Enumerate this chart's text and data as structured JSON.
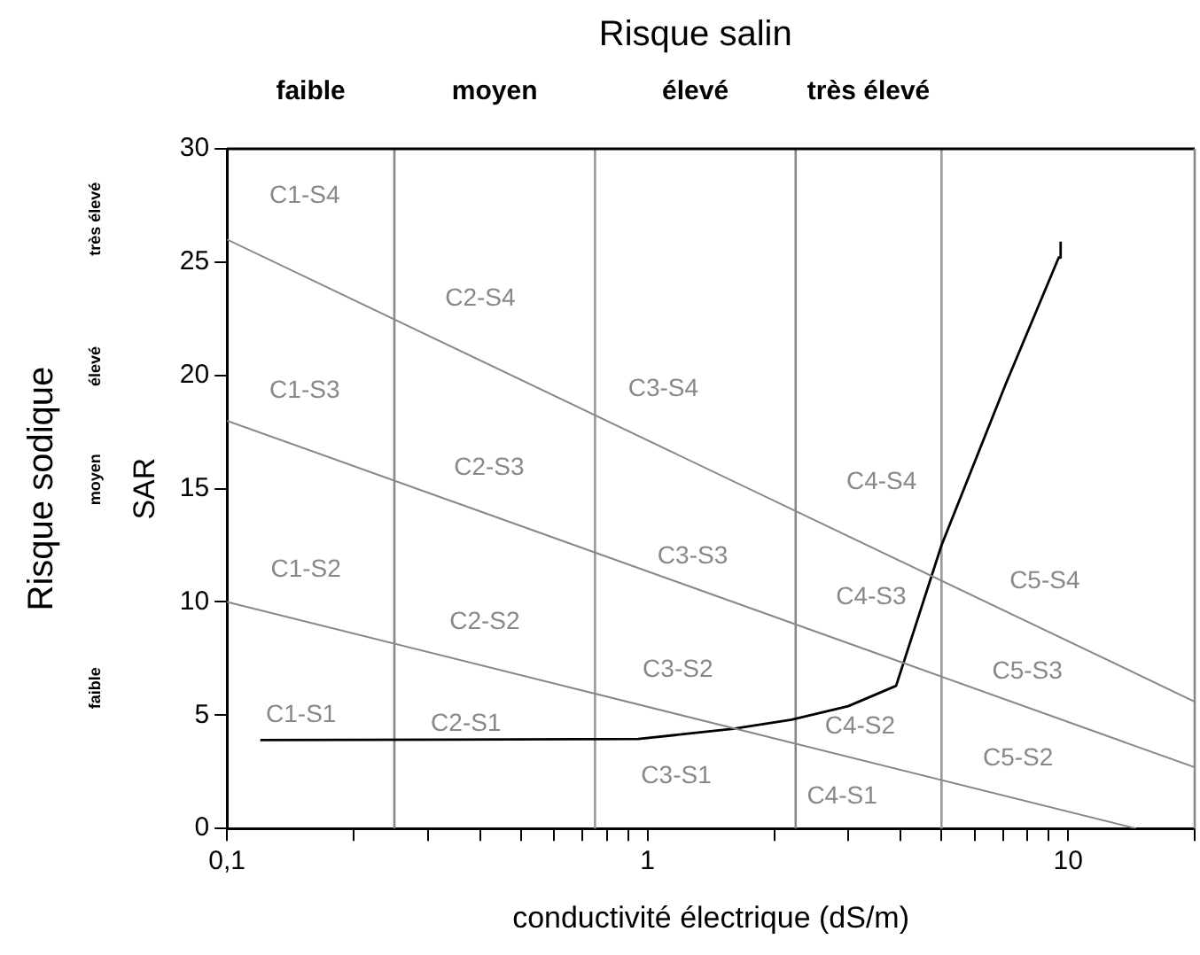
{
  "chart_data": {
    "type": "line",
    "title": "Risque salin",
    "xlabel": "conductivité électrique (dS/m)",
    "ylabel": "SAR",
    "log": "x",
    "xlim": [
      0.1,
      20
    ],
    "ylim": [
      0,
      30
    ],
    "xticks": [
      {
        "value": 0.1,
        "label": "0,1"
      },
      {
        "value": 0.2,
        "label": null
      },
      {
        "value": 0.3,
        "label": null
      },
      {
        "value": 0.4,
        "label": null
      },
      {
        "value": 0.5,
        "label": null
      },
      {
        "value": 0.6,
        "label": null
      },
      {
        "value": 0.7,
        "label": null
      },
      {
        "value": 0.8,
        "label": null
      },
      {
        "value": 0.9,
        "label": null
      },
      1,
      {
        "value": 2,
        "label": null
      },
      {
        "value": 3,
        "label": null
      },
      {
        "value": 4,
        "label": null
      },
      {
        "value": 5,
        "label": null
      },
      {
        "value": 6,
        "label": null
      },
      {
        "value": 7,
        "label": null
      },
      {
        "value": 8,
        "label": null
      },
      {
        "value": 9,
        "label": null
      },
      10,
      {
        "value": 20,
        "label": null
      }
    ],
    "yticks": [
      0,
      5,
      10,
      15,
      20,
      25,
      30
    ],
    "grid": false,
    "legend": false,
    "marker": "none",
    "line_style": "solid",
    "series": [
      {
        "color": "#888888",
        "x": [
          0.1,
          20
        ],
        "values": [
          26,
          5.6
        ]
      },
      {
        "color": "#888888",
        "x": [
          0.1,
          20
        ],
        "values": [
          18,
          2.7
        ]
      },
      {
        "color": "#888888",
        "x": [
          0.1,
          14.5
        ],
        "values": [
          10,
          0
        ]
      },
      {
        "color": "#000000",
        "x": [
          0.12,
          0.95,
          1.6,
          2.2,
          3,
          3.9,
          5,
          7.1,
          8.3,
          9.5,
          9.6,
          9.6
        ],
        "values": [
          3.9,
          3.95,
          4.4,
          4.8,
          5.4,
          6.3,
          12.5,
          19.6,
          22.6,
          25.2,
          25.2,
          25.9
        ]
      }
    ],
    "ref_lines": [
      {
        "axis": "x",
        "value": 0.25,
        "color": "#888888"
      },
      {
        "axis": "x",
        "value": 0.75,
        "color": "#999999"
      },
      {
        "axis": "x",
        "value": 2.25,
        "color": "#888888"
      },
      {
        "axis": "x",
        "value": 5,
        "color": "#999999"
      }
    ],
    "annotations": [
      "faible",
      "moyen",
      "élevé",
      "très élevé",
      "très élevé",
      "élevé",
      "moyen",
      "faible",
      "Risque sodique",
      "C1-S4",
      "C1-S3",
      "C1-S2",
      "C1-S1",
      "C2-S4",
      "C2-S3",
      "C2-S2",
      "C2-S1",
      "C3-S4",
      "C3-S3",
      "C3-S2",
      "C3-S1",
      "C4-S4",
      "C4-S3",
      "C4-S2",
      "C4-S1",
      "C5-S4",
      "C5-S3",
      "C5-S2"
    ]
  }
}
